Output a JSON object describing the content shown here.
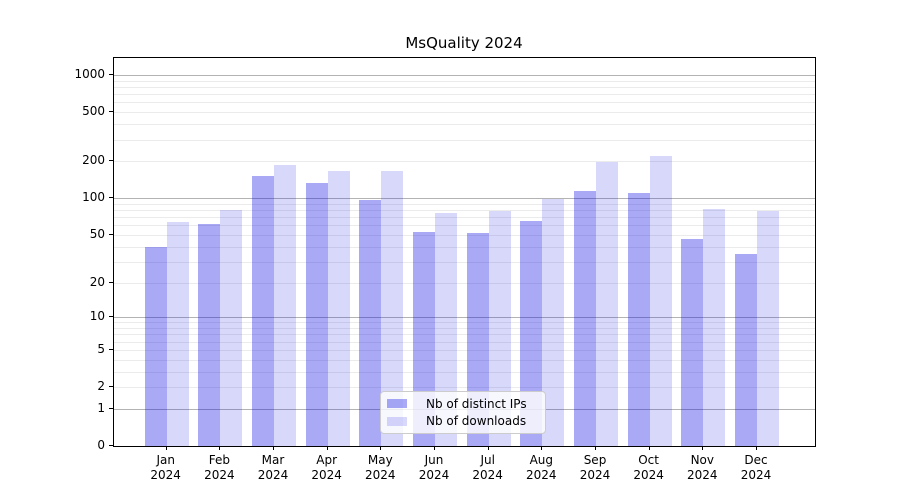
{
  "title": "MsQuality 2024",
  "chart_data": {
    "type": "bar",
    "title": "MsQuality 2024",
    "months": [
      "Jan",
      "Feb",
      "Mar",
      "Apr",
      "May",
      "Jun",
      "Jul",
      "Aug",
      "Sep",
      "Oct",
      "Nov",
      "Dec"
    ],
    "year_line": "2024",
    "categories": [
      "Jan 2024",
      "Feb 2024",
      "Mar 2024",
      "Apr 2024",
      "May 2024",
      "Jun 2024",
      "Jul 2024",
      "Aug 2024",
      "Sep 2024",
      "Oct 2024",
      "Nov 2024",
      "Dec 2024"
    ],
    "series": [
      {
        "name": "Nb of distinct IPs",
        "color": "rgba(10,10,230,0.35)",
        "values": [
          40,
          61,
          152,
          132,
          96,
          53,
          52,
          65,
          114,
          111,
          46,
          35
        ]
      },
      {
        "name": "Nb of downloads",
        "color": "rgba(10,10,230,0.16)",
        "values": [
          64,
          80,
          186,
          165,
          165,
          75,
          78,
          98,
          196,
          219,
          81,
          79
        ]
      }
    ],
    "yscale": "log10(value+1)",
    "ylim": [
      0,
      1370
    ],
    "yticks": [
      0,
      1,
      2,
      5,
      10,
      20,
      50,
      100,
      200,
      500,
      1000
    ],
    "major_grid_values": [
      1,
      10,
      100,
      1000
    ],
    "minor_grid_multiples": [
      3,
      4,
      6,
      7,
      8,
      9
    ],
    "grid": true,
    "legend_position": "lower center",
    "colors": {
      "bar_dark": "#a8a8f7",
      "bar_light": "#d9d9fb",
      "major_grid": "#b3b3b3",
      "minor_grid": "#ebebeb",
      "spine": "#000000",
      "text": "#000000"
    }
  },
  "legend": {
    "items": [
      {
        "label": "Nb of distinct IPs"
      },
      {
        "label": "Nb of downloads"
      }
    ]
  }
}
